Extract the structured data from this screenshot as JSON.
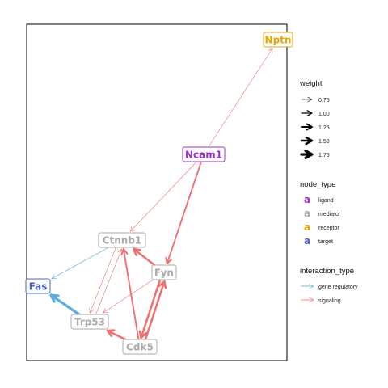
{
  "colors": {
    "ligand": "#9a32cd",
    "mediator": "#aaaaaa",
    "receptor": "#e8a400",
    "target": "#4a63c8",
    "gene_regulatory": "#5aaee0",
    "signaling": "#f07070",
    "frame": "#000000"
  },
  "nodes": [
    {
      "id": "Nptn",
      "label": "Nptn",
      "type": "receptor"
    },
    {
      "id": "Ncam1",
      "label": "Ncam1",
      "type": "ligand"
    },
    {
      "id": "Ctnnb1",
      "label": "Ctnnb1",
      "type": "mediator"
    },
    {
      "id": "Fyn",
      "label": "Fyn",
      "type": "mediator"
    },
    {
      "id": "Fas",
      "label": "Fas",
      "type": "target"
    },
    {
      "id": "Trp53",
      "label": "Trp53",
      "type": "mediator"
    },
    {
      "id": "Cdk5",
      "label": "Cdk5",
      "type": "mediator"
    }
  ],
  "edges": [
    {
      "from": "Ncam1",
      "to": "Nptn",
      "interaction": "signaling",
      "weight": 0.75
    },
    {
      "from": "Ncam1",
      "to": "Ctnnb1",
      "interaction": "signaling",
      "weight": 0.75
    },
    {
      "from": "Ncam1",
      "to": "Fyn",
      "interaction": "signaling",
      "weight": 1.25
    },
    {
      "from": "Ctnnb1",
      "to": "Fas",
      "interaction": "gene regulatory",
      "weight": 0.75
    },
    {
      "from": "Trp53",
      "to": "Fas",
      "interaction": "gene regulatory",
      "weight": 1.75
    },
    {
      "from": "Fyn",
      "to": "Ctnnb1",
      "interaction": "signaling",
      "weight": 1.5
    },
    {
      "from": "Cdk5",
      "to": "Ctnnb1",
      "interaction": "signaling",
      "weight": 1.25
    },
    {
      "from": "Trp53",
      "to": "Ctnnb1",
      "interaction": "signaling",
      "weight": 0.75
    },
    {
      "from": "Ctnnb1",
      "to": "Trp53",
      "interaction": "signaling",
      "weight": 0.75
    },
    {
      "from": "Fyn",
      "to": "Trp53",
      "interaction": "signaling",
      "weight": 0.75
    },
    {
      "from": "Cdk5",
      "to": "Trp53",
      "interaction": "signaling",
      "weight": 1.5
    },
    {
      "from": "Fyn",
      "to": "Cdk5",
      "interaction": "signaling",
      "weight": 1.5
    },
    {
      "from": "Cdk5",
      "to": "Fyn",
      "interaction": "signaling",
      "weight": 1.5
    }
  ],
  "legend": {
    "weight": {
      "title": "weight",
      "entries": [
        "0.75",
        "1.00",
        "1.25",
        "1.50",
        "1.75"
      ]
    },
    "node_type": {
      "title": "node_type",
      "key_glyph": "a",
      "entries": [
        {
          "label": "ligand",
          "type": "ligand"
        },
        {
          "label": "mediator",
          "type": "mediator"
        },
        {
          "label": "receptor",
          "type": "receptor"
        },
        {
          "label": "target",
          "type": "target"
        }
      ]
    },
    "interaction_type": {
      "title": "interaction_type",
      "entries": [
        {
          "label": "gene regulatory",
          "interaction": "gene_regulatory"
        },
        {
          "label": "signaling",
          "interaction": "signaling"
        }
      ]
    }
  }
}
